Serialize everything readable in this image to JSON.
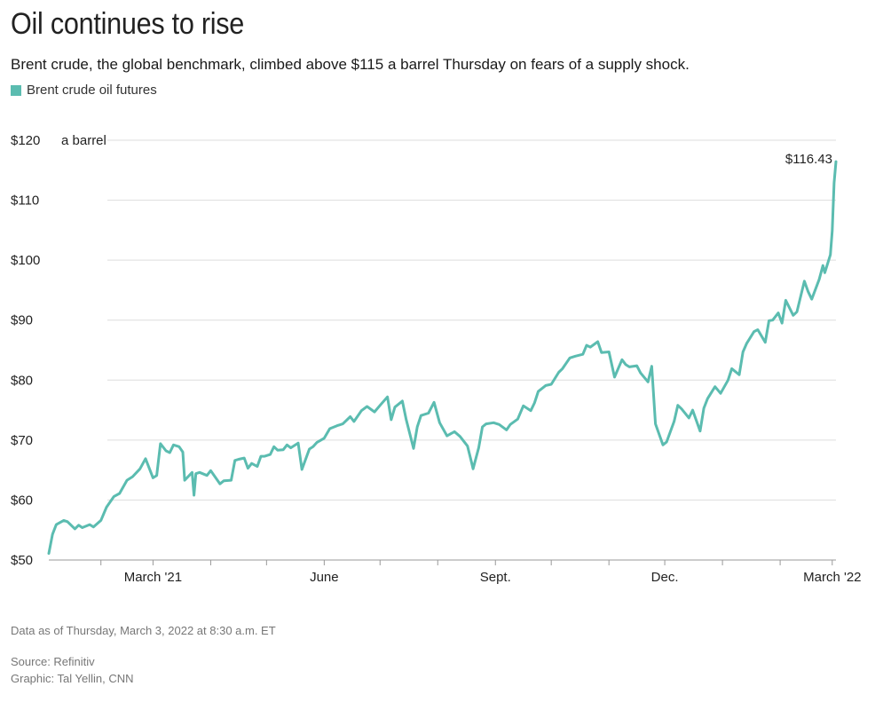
{
  "title": "Oil continues to rise",
  "subtitle": "Brent crude, the global benchmark, climbed above $115 a barrel Thursday on fears of a supply shock.",
  "legend": {
    "label": "Brent crude oil futures",
    "color": "#5bbcb0"
  },
  "chart_data": {
    "type": "line",
    "title": "Oil continues to rise",
    "subtitle": "Brent crude, the global benchmark, climbed above $115 a barrel Thursday on fears of a supply shock.",
    "unit_label": "a barrel",
    "ylim": [
      50,
      120
    ],
    "y_ticks": [
      {
        "value": 50,
        "label": "$50"
      },
      {
        "value": 60,
        "label": "$60"
      },
      {
        "value": 70,
        "label": "$70"
      },
      {
        "value": 80,
        "label": "$80"
      },
      {
        "value": 90,
        "label": "$90"
      },
      {
        "value": 100,
        "label": "$100"
      },
      {
        "value": 110,
        "label": "$110"
      },
      {
        "value": 120,
        "label": "$120"
      }
    ],
    "xlim": [
      "2021-01-04",
      "2022-03-03"
    ],
    "x_ticks": [
      {
        "date": "2021-03-01",
        "label": "March '21"
      },
      {
        "date": "2021-06-01",
        "label": "June"
      },
      {
        "date": "2021-09-01",
        "label": "Sept."
      },
      {
        "date": "2021-12-01",
        "label": "Dec."
      },
      {
        "date": "2022-03-01",
        "label": "March '22"
      }
    ],
    "x_minor_ticks": [
      "2021-02-01",
      "2021-04-01",
      "2021-05-01",
      "2021-07-01",
      "2021-08-01",
      "2021-10-01",
      "2021-11-01",
      "2022-01-01",
      "2022-02-01"
    ],
    "grid": true,
    "legend": "top-left",
    "series": [
      {
        "name": "Brent crude oil futures",
        "color": "#5bbcb0",
        "points": [
          [
            "2021-01-04",
            51.1
          ],
          [
            "2021-01-06",
            54.3
          ],
          [
            "2021-01-08",
            55.9
          ],
          [
            "2021-01-12",
            56.6
          ],
          [
            "2021-01-14",
            56.4
          ],
          [
            "2021-01-18",
            55.2
          ],
          [
            "2021-01-20",
            55.8
          ],
          [
            "2021-01-22",
            55.4
          ],
          [
            "2021-01-26",
            55.9
          ],
          [
            "2021-01-28",
            55.5
          ],
          [
            "2021-02-01",
            56.6
          ],
          [
            "2021-02-04",
            58.8
          ],
          [
            "2021-02-08",
            60.6
          ],
          [
            "2021-02-11",
            61.1
          ],
          [
            "2021-02-15",
            63.3
          ],
          [
            "2021-02-18",
            63.9
          ],
          [
            "2021-02-22",
            65.2
          ],
          [
            "2021-02-25",
            66.9
          ],
          [
            "2021-03-01",
            63.7
          ],
          [
            "2021-03-03",
            64.1
          ],
          [
            "2021-03-05",
            69.4
          ],
          [
            "2021-03-08",
            68.2
          ],
          [
            "2021-03-10",
            67.9
          ],
          [
            "2021-03-12",
            69.2
          ],
          [
            "2021-03-15",
            68.9
          ],
          [
            "2021-03-17",
            68.0
          ],
          [
            "2021-03-18",
            63.3
          ],
          [
            "2021-03-22",
            64.6
          ],
          [
            "2021-03-23",
            60.8
          ],
          [
            "2021-03-24",
            64.4
          ],
          [
            "2021-03-26",
            64.6
          ],
          [
            "2021-03-30",
            64.1
          ],
          [
            "2021-04-01",
            64.9
          ],
          [
            "2021-04-06",
            62.7
          ],
          [
            "2021-04-08",
            63.2
          ],
          [
            "2021-04-12",
            63.3
          ],
          [
            "2021-04-14",
            66.6
          ],
          [
            "2021-04-16",
            66.8
          ],
          [
            "2021-04-19",
            67.0
          ],
          [
            "2021-04-21",
            65.3
          ],
          [
            "2021-04-23",
            66.1
          ],
          [
            "2021-04-26",
            65.6
          ],
          [
            "2021-04-28",
            67.3
          ],
          [
            "2021-04-30",
            67.3
          ],
          [
            "2021-05-03",
            67.6
          ],
          [
            "2021-05-05",
            68.9
          ],
          [
            "2021-05-07",
            68.3
          ],
          [
            "2021-05-10",
            68.4
          ],
          [
            "2021-05-12",
            69.2
          ],
          [
            "2021-05-14",
            68.7
          ],
          [
            "2021-05-18",
            69.5
          ],
          [
            "2021-05-20",
            65.1
          ],
          [
            "2021-05-24",
            68.5
          ],
          [
            "2021-05-26",
            68.9
          ],
          [
            "2021-05-28",
            69.6
          ],
          [
            "2021-06-01",
            70.3
          ],
          [
            "2021-06-04",
            71.9
          ],
          [
            "2021-06-08",
            72.4
          ],
          [
            "2021-06-11",
            72.7
          ],
          [
            "2021-06-15",
            73.9
          ],
          [
            "2021-06-17",
            73.1
          ],
          [
            "2021-06-21",
            74.9
          ],
          [
            "2021-06-24",
            75.6
          ],
          [
            "2021-06-28",
            74.7
          ],
          [
            "2021-07-01",
            75.8
          ],
          [
            "2021-07-05",
            77.2
          ],
          [
            "2021-07-07",
            73.4
          ],
          [
            "2021-07-09",
            75.5
          ],
          [
            "2021-07-13",
            76.5
          ],
          [
            "2021-07-15",
            73.5
          ],
          [
            "2021-07-19",
            68.6
          ],
          [
            "2021-07-21",
            72.2
          ],
          [
            "2021-07-23",
            74.1
          ],
          [
            "2021-07-27",
            74.5
          ],
          [
            "2021-07-30",
            76.3
          ],
          [
            "2021-08-02",
            72.9
          ],
          [
            "2021-08-06",
            70.7
          ],
          [
            "2021-08-10",
            71.4
          ],
          [
            "2021-08-13",
            70.6
          ],
          [
            "2021-08-17",
            69.0
          ],
          [
            "2021-08-19",
            66.5
          ],
          [
            "2021-08-20",
            65.2
          ],
          [
            "2021-08-23",
            68.7
          ],
          [
            "2021-08-25",
            72.2
          ],
          [
            "2021-08-27",
            72.7
          ],
          [
            "2021-08-31",
            72.9
          ],
          [
            "2021-09-03",
            72.6
          ],
          [
            "2021-09-07",
            71.7
          ],
          [
            "2021-09-09",
            72.6
          ],
          [
            "2021-09-13",
            73.5
          ],
          [
            "2021-09-16",
            75.7
          ],
          [
            "2021-09-20",
            74.9
          ],
          [
            "2021-09-22",
            76.2
          ],
          [
            "2021-09-24",
            78.1
          ],
          [
            "2021-09-28",
            79.1
          ],
          [
            "2021-10-01",
            79.3
          ],
          [
            "2021-10-05",
            81.3
          ],
          [
            "2021-10-07",
            81.9
          ],
          [
            "2021-10-11",
            83.7
          ],
          [
            "2021-10-14",
            84.0
          ],
          [
            "2021-10-18",
            84.3
          ],
          [
            "2021-10-20",
            85.8
          ],
          [
            "2021-10-22",
            85.5
          ],
          [
            "2021-10-26",
            86.4
          ],
          [
            "2021-10-28",
            84.6
          ],
          [
            "2021-11-01",
            84.7
          ],
          [
            "2021-11-04",
            80.5
          ],
          [
            "2021-11-08",
            83.4
          ],
          [
            "2021-11-10",
            82.6
          ],
          [
            "2021-11-12",
            82.2
          ],
          [
            "2021-11-16",
            82.4
          ],
          [
            "2021-11-18",
            81.2
          ],
          [
            "2021-11-22",
            79.7
          ],
          [
            "2021-11-24",
            82.3
          ],
          [
            "2021-11-26",
            72.7
          ],
          [
            "2021-11-30",
            69.2
          ],
          [
            "2021-12-02",
            69.7
          ],
          [
            "2021-12-06",
            73.1
          ],
          [
            "2021-12-08",
            75.8
          ],
          [
            "2021-12-10",
            75.2
          ],
          [
            "2021-12-14",
            73.7
          ],
          [
            "2021-12-16",
            75.0
          ],
          [
            "2021-12-20",
            71.5
          ],
          [
            "2021-12-22",
            75.3
          ],
          [
            "2021-12-24",
            76.9
          ],
          [
            "2021-12-28",
            78.9
          ],
          [
            "2021-12-31",
            77.8
          ],
          [
            "2022-01-04",
            80.0
          ],
          [
            "2022-01-06",
            81.9
          ],
          [
            "2022-01-10",
            80.9
          ],
          [
            "2022-01-12",
            84.7
          ],
          [
            "2022-01-14",
            86.1
          ],
          [
            "2022-01-18",
            88.1
          ],
          [
            "2022-01-20",
            88.4
          ],
          [
            "2022-01-24",
            86.3
          ],
          [
            "2022-01-26",
            89.9
          ],
          [
            "2022-01-28",
            90.0
          ],
          [
            "2022-01-31",
            91.2
          ],
          [
            "2022-02-02",
            89.5
          ],
          [
            "2022-02-04",
            93.3
          ],
          [
            "2022-02-08",
            90.8
          ],
          [
            "2022-02-10",
            91.4
          ],
          [
            "2022-02-14",
            96.5
          ],
          [
            "2022-02-16",
            94.8
          ],
          [
            "2022-02-18",
            93.5
          ],
          [
            "2022-02-22",
            96.8
          ],
          [
            "2022-02-24",
            99.1
          ],
          [
            "2022-02-25",
            97.9
          ],
          [
            "2022-02-28",
            100.9
          ],
          [
            "2022-03-01",
            104.9
          ],
          [
            "2022-03-02",
            112.9
          ],
          [
            "2022-03-03",
            116.43
          ]
        ]
      }
    ],
    "annotations": [
      {
        "date": "2022-03-03",
        "value": 116.43,
        "text": "$116.43"
      }
    ]
  },
  "footer": {
    "data_note": "Data as of Thursday, March 3, 2022 at 8:30 a.m. ET",
    "source": "Source: Refinitiv",
    "credit": "Graphic: Tal Yellin, CNN"
  }
}
